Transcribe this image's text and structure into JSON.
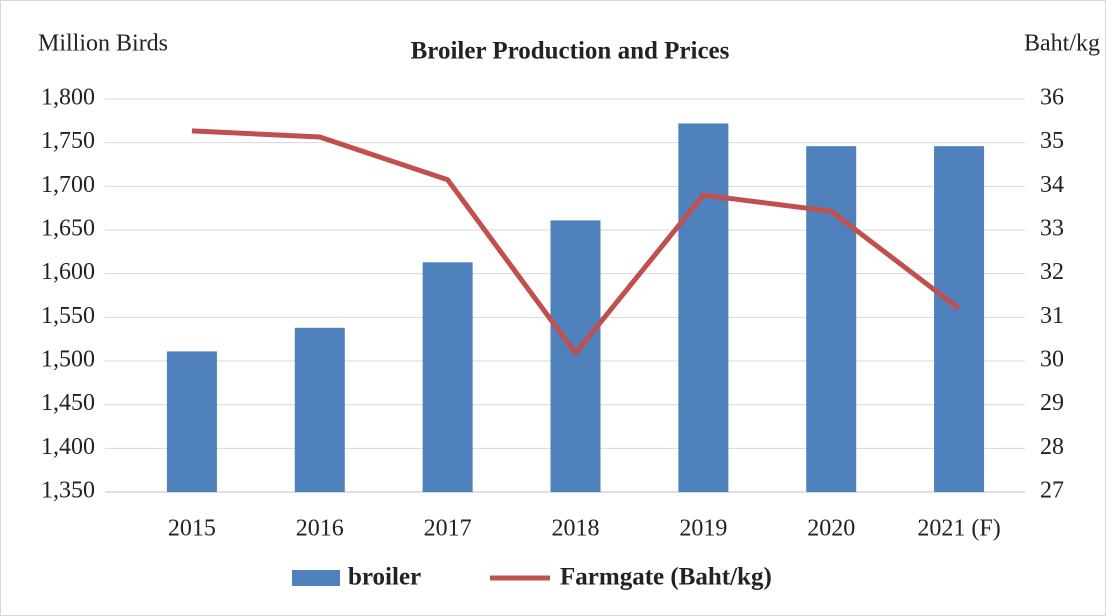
{
  "chart_data": {
    "type": "bar-line",
    "title": "Broiler Production  and Prices",
    "y_label": "Million Birds",
    "y2_label": "Baht/kg",
    "categories": [
      "2015",
      "2016",
      "2017",
      "2018",
      "2019",
      "2020",
      "2021 (F)"
    ],
    "series": [
      {
        "name": "broiler",
        "type": "bar",
        "color": "#4f81bd",
        "values": [
          1511,
          1538,
          1613,
          1661,
          1772,
          1746,
          1746
        ]
      },
      {
        "name": "Farmgate (Baht/kg)",
        "type": "line",
        "axis": "y2",
        "color": "#c0504d",
        "values": [
          35.27,
          35.13,
          34.15,
          30.18,
          33.8,
          33.43,
          31.2
        ]
      }
    ],
    "ylim": [
      1350,
      1800
    ],
    "yticks": [
      {
        "value": 1350,
        "label": "1,350"
      },
      {
        "value": 1400,
        "label": "1,400"
      },
      {
        "value": 1450,
        "label": "1,450"
      },
      {
        "value": 1500,
        "label": "1,500"
      },
      {
        "value": 1550,
        "label": "1,550"
      },
      {
        "value": 1600,
        "label": "1,600"
      },
      {
        "value": 1650,
        "label": "1,650"
      },
      {
        "value": 1700,
        "label": "1,700"
      },
      {
        "value": 1750,
        "label": "1,750"
      },
      {
        "value": 1800,
        "label": "1,800"
      }
    ],
    "y2lim": [
      27,
      36
    ],
    "y2ticks": [
      27,
      28,
      29,
      30,
      31,
      32,
      33,
      34,
      35,
      36
    ],
    "grid": true,
    "legend": "bottom"
  }
}
